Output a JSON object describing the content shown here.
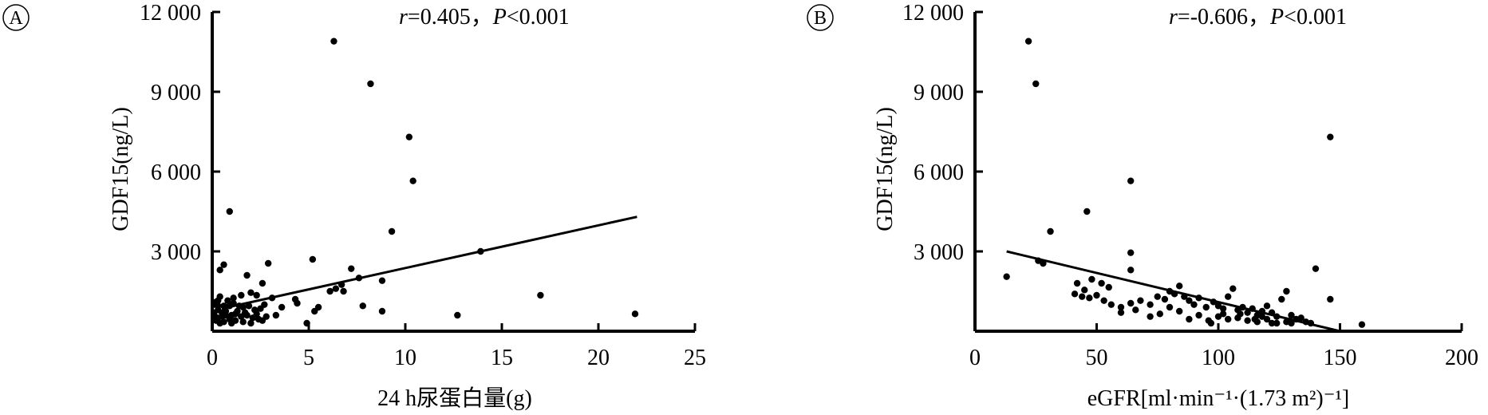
{
  "chart_data": [
    {
      "type": "scatter",
      "panel": "A",
      "stat": {
        "r_label": "r",
        "r_value": "=0.405",
        "sep": "，",
        "p_label": "P",
        "p_value": "<0.001"
      },
      "xlabel": "24 h尿蛋白量(g)",
      "ylabel": "GDF15(ng/L)",
      "xlim": [
        0,
        25
      ],
      "ylim": [
        0,
        12000
      ],
      "xticks": [
        0,
        5,
        10,
        15,
        20,
        25
      ],
      "xtick_labels": [
        "0",
        "5",
        "10",
        "15",
        "20",
        "25"
      ],
      "yticks": [
        3000,
        6000,
        9000,
        12000
      ],
      "ytick_labels": [
        "3 000",
        "6 000",
        "9 000",
        "12 000"
      ],
      "fit_line": {
        "x": [
          0.5,
          22
        ],
        "y": [
          850,
          4300
        ]
      },
      "points": [
        [
          6.3,
          10900
        ],
        [
          8.2,
          9300
        ],
        [
          10.2,
          7300
        ],
        [
          10.4,
          5650
        ],
        [
          0.9,
          4500
        ],
        [
          9.3,
          3750
        ],
        [
          13.9,
          3000
        ],
        [
          5.2,
          2700
        ],
        [
          2.9,
          2550
        ],
        [
          0.6,
          2500
        ],
        [
          0.4,
          2300
        ],
        [
          7.2,
          2350
        ],
        [
          8.8,
          1900
        ],
        [
          7.6,
          2000
        ],
        [
          1.8,
          2100
        ],
        [
          2.6,
          1800
        ],
        [
          6.7,
          1750
        ],
        [
          6.4,
          1600
        ],
        [
          6.8,
          1500
        ],
        [
          6.1,
          1500
        ],
        [
          17.0,
          1350
        ],
        [
          4.3,
          1200
        ],
        [
          4.4,
          1050
        ],
        [
          3.1,
          1250
        ],
        [
          2.3,
          1350
        ],
        [
          2.0,
          1450
        ],
        [
          1.5,
          1350
        ],
        [
          1.1,
          1250
        ],
        [
          0.4,
          1300
        ],
        [
          0.3,
          1150
        ],
        [
          0.2,
          1100
        ],
        [
          0.1,
          1000
        ],
        [
          0.3,
          950
        ],
        [
          0.6,
          950
        ],
        [
          0.9,
          950
        ],
        [
          1.1,
          1050
        ],
        [
          1.4,
          950
        ],
        [
          1.6,
          900
        ],
        [
          1.9,
          950
        ],
        [
          2.2,
          800
        ],
        [
          2.5,
          850
        ],
        [
          2.7,
          1000
        ],
        [
          3.6,
          900
        ],
        [
          5.3,
          750
        ],
        [
          5.5,
          900
        ],
        [
          7.8,
          950
        ],
        [
          8.8,
          750
        ],
        [
          12.7,
          600
        ],
        [
          21.9,
          650
        ],
        [
          0.1,
          600
        ],
        [
          0.3,
          500
        ],
        [
          0.5,
          700
        ],
        [
          0.7,
          750
        ],
        [
          1.0,
          600
        ],
        [
          1.2,
          650
        ],
        [
          1.5,
          550
        ],
        [
          1.8,
          600
        ],
        [
          2.1,
          500
        ],
        [
          2.4,
          450
        ],
        [
          2.8,
          550
        ],
        [
          0.2,
          400
        ],
        [
          0.4,
          300
        ],
        [
          0.6,
          350
        ],
        [
          0.9,
          450
        ],
        [
          1.2,
          400
        ],
        [
          1.6,
          350
        ],
        [
          2.0,
          300
        ],
        [
          0.3,
          800
        ],
        [
          0.8,
          1150
        ],
        [
          1.3,
          750
        ],
        [
          1.7,
          700
        ],
        [
          2.3,
          650
        ],
        [
          0.5,
          550
        ],
        [
          0.1,
          700
        ],
        [
          4.9,
          300
        ],
        [
          3.3,
          600
        ],
        [
          1.0,
          300
        ],
        [
          2.6,
          400
        ],
        [
          0.7,
          600
        ]
      ]
    },
    {
      "type": "scatter",
      "panel": "B",
      "stat": {
        "r_label": "r",
        "r_value": "=-0.606",
        "sep": "，",
        "p_label": "P",
        "p_value": "<0.001"
      },
      "xlabel": "eGFR[ml·min⁻¹·(1.73 m²)⁻¹]",
      "ylabel": "GDF15(ng/L)",
      "xlim": [
        0,
        200
      ],
      "ylim": [
        0,
        12000
      ],
      "xticks": [
        0,
        50,
        100,
        150,
        200
      ],
      "xtick_labels": [
        "0",
        "50",
        "100",
        "150",
        "200"
      ],
      "yticks": [
        3000,
        6000,
        9000,
        12000
      ],
      "ytick_labels": [
        "3 000",
        "6 000",
        "9 000",
        "12 000"
      ],
      "fit_line": {
        "x": [
          13,
          150
        ],
        "y": [
          3000,
          0
        ]
      },
      "points": [
        [
          22,
          10900
        ],
        [
          25,
          9300
        ],
        [
          146,
          7300
        ],
        [
          64,
          5650
        ],
        [
          46,
          4500
        ],
        [
          31,
          3750
        ],
        [
          64,
          2950
        ],
        [
          26,
          2650
        ],
        [
          28,
          2550
        ],
        [
          140,
          2350
        ],
        [
          13,
          2050
        ],
        [
          64,
          2300
        ],
        [
          48,
          1950
        ],
        [
          52,
          1800
        ],
        [
          42,
          1800
        ],
        [
          55,
          1650
        ],
        [
          45,
          1550
        ],
        [
          41,
          1400
        ],
        [
          44,
          1300
        ],
        [
          47,
          1250
        ],
        [
          50,
          1350
        ],
        [
          53,
          1150
        ],
        [
          56,
          1000
        ],
        [
          60,
          900
        ],
        [
          64,
          1050
        ],
        [
          68,
          1150
        ],
        [
          72,
          1000
        ],
        [
          75,
          1300
        ],
        [
          78,
          1200
        ],
        [
          80,
          1500
        ],
        [
          82,
          1400
        ],
        [
          84,
          1700
        ],
        [
          86,
          1300
        ],
        [
          88,
          1150
        ],
        [
          90,
          1000
        ],
        [
          92,
          1250
        ],
        [
          95,
          900
        ],
        [
          98,
          1100
        ],
        [
          100,
          950
        ],
        [
          102,
          850
        ],
        [
          104,
          1300
        ],
        [
          106,
          1600
        ],
        [
          108,
          800
        ],
        [
          110,
          900
        ],
        [
          112,
          700
        ],
        [
          114,
          850
        ],
        [
          116,
          600
        ],
        [
          118,
          750
        ],
        [
          120,
          950
        ],
        [
          122,
          700
        ],
        [
          124,
          550
        ],
        [
          126,
          1200
        ],
        [
          128,
          1500
        ],
        [
          130,
          600
        ],
        [
          132,
          450
        ],
        [
          134,
          500
        ],
        [
          136,
          350
        ],
        [
          138,
          300
        ],
        [
          146,
          1200
        ],
        [
          159,
          250
        ],
        [
          60,
          700
        ],
        [
          66,
          800
        ],
        [
          72,
          550
        ],
        [
          76,
          650
        ],
        [
          80,
          900
        ],
        [
          84,
          750
        ],
        [
          88,
          450
        ],
        [
          92,
          600
        ],
        [
          96,
          400
        ],
        [
          100,
          550
        ],
        [
          104,
          450
        ],
        [
          108,
          500
        ],
        [
          112,
          400
        ],
        [
          116,
          350
        ],
        [
          120,
          450
        ],
        [
          124,
          300
        ],
        [
          128,
          350
        ],
        [
          97,
          300
        ],
        [
          102,
          650
        ],
        [
          109,
          650
        ],
        [
          115,
          450
        ],
        [
          118,
          550
        ],
        [
          122,
          300
        ],
        [
          130,
          300
        ]
      ]
    }
  ]
}
